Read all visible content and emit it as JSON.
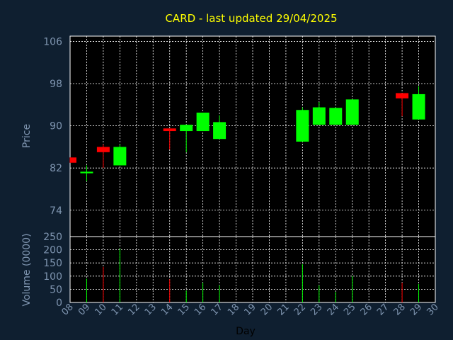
{
  "chart_data": {
    "type": "candlestick",
    "title": "CARD - last updated 29/04/2025",
    "xlabel": "Day",
    "price_panel": {
      "ylabel": "Price",
      "ylim": [
        69,
        107
      ],
      "yticks": [
        74,
        82,
        90,
        98,
        106
      ]
    },
    "volume_panel": {
      "ylabel": "Volume (0000)",
      "ylim": [
        0,
        250
      ],
      "yticks": [
        0,
        50,
        100,
        150,
        200,
        250
      ]
    },
    "grid": true,
    "x_tick_labels": [
      "08",
      "09",
      "10",
      "11",
      "12",
      "13",
      "14",
      "15",
      "16",
      "17",
      "18",
      "19",
      "20",
      "21",
      "22",
      "23",
      "24",
      "25",
      "26",
      "27",
      "28",
      "29",
      "30"
    ],
    "up_color": "#00ff00",
    "down_color": "#ff0000",
    "candles": [
      {
        "day": "08",
        "open": 84.0,
        "close": 83.0,
        "high": 84.0,
        "low": 83.0,
        "volume": 0
      },
      {
        "day": "09",
        "open": 81.0,
        "close": 81.3,
        "high": 82.5,
        "low": 79.5,
        "volume": 90
      },
      {
        "day": "10",
        "open": 86.0,
        "close": 85.0,
        "high": 86.5,
        "low": 82.0,
        "volume": 135
      },
      {
        "day": "11",
        "open": 82.5,
        "close": 86.0,
        "high": 86.5,
        "low": 82.5,
        "volume": 205
      },
      {
        "day": "14",
        "open": 89.5,
        "close": 89.0,
        "high": 89.5,
        "low": 85.5,
        "volume": 88
      },
      {
        "day": "15",
        "open": 89.0,
        "close": 90.2,
        "high": 90.2,
        "low": 85.0,
        "volume": 45
      },
      {
        "day": "16",
        "open": 89.0,
        "close": 92.5,
        "high": 92.5,
        "low": 89.0,
        "volume": 75
      },
      {
        "day": "17",
        "open": 87.5,
        "close": 90.7,
        "high": 92.0,
        "low": 87.5,
        "volume": 65
      },
      {
        "day": "22",
        "open": 87.0,
        "close": 93.0,
        "high": 93.5,
        "low": 87.0,
        "volume": 145
      },
      {
        "day": "23",
        "open": 90.2,
        "close": 93.5,
        "high": 94.5,
        "low": 90.2,
        "volume": 65
      },
      {
        "day": "24",
        "open": 90.2,
        "close": 93.4,
        "high": 93.5,
        "low": 90.2,
        "volume": 40
      },
      {
        "day": "25",
        "open": 90.2,
        "close": 95.0,
        "high": 95.0,
        "low": 90.2,
        "volume": 100
      },
      {
        "day": "28",
        "open": 96.2,
        "close": 95.2,
        "high": 96.2,
        "low": 91.8,
        "volume": 75
      },
      {
        "day": "29",
        "open": 91.2,
        "close": 96.0,
        "high": 97.5,
        "low": 91.2,
        "volume": 70
      }
    ]
  }
}
